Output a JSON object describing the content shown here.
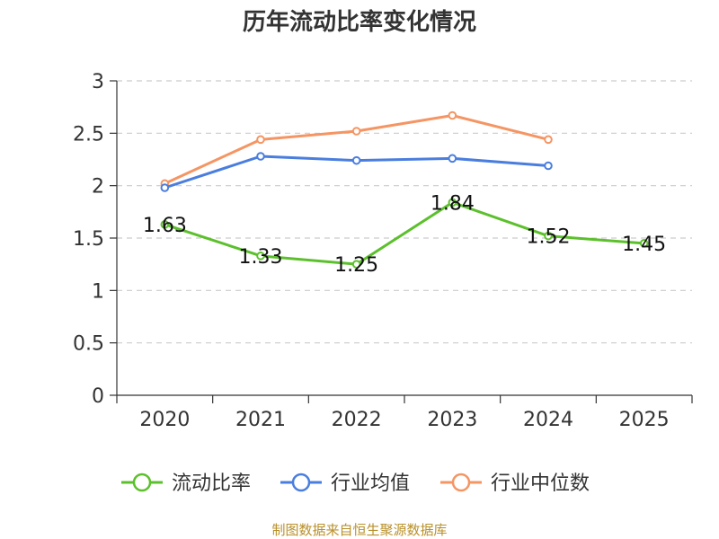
{
  "chart_data": {
    "type": "line",
    "title": "历年流动比率变化情况",
    "categories": [
      "2020",
      "2021",
      "2022",
      "2023",
      "2024",
      "2025"
    ],
    "ylim": [
      0,
      3
    ],
    "yticks": [
      "0",
      "0.5",
      "1",
      "1.5",
      "2",
      "2.5",
      "3"
    ],
    "ytick_values": [
      0,
      0.5,
      1,
      1.5,
      2,
      2.5,
      3
    ],
    "grid": true,
    "legend_position": "bottom",
    "series": [
      {
        "name": "流动比率",
        "color": "#5cc02c",
        "values": [
          1.63,
          1.33,
          1.25,
          1.84,
          1.52,
          1.45
        ],
        "labels": [
          "1.63",
          "1.33",
          "1.25",
          "1.84",
          "1.52",
          "1.45"
        ],
        "show_labels": true
      },
      {
        "name": "行业均值",
        "color": "#4a7ede",
        "values": [
          1.98,
          2.28,
          2.24,
          2.26,
          2.19,
          null
        ],
        "show_labels": false
      },
      {
        "name": "行业中位数",
        "color": "#f59563",
        "values": [
          2.02,
          2.44,
          2.52,
          2.67,
          2.44,
          null
        ],
        "show_labels": false
      }
    ],
    "source": "制图数据来自恒生聚源数据库"
  }
}
